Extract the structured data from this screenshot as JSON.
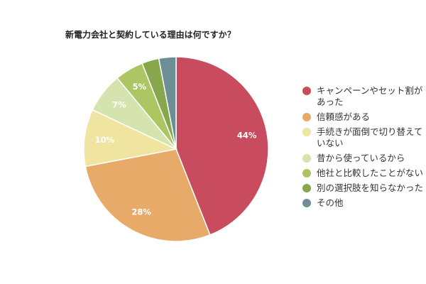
{
  "chart_data": {
    "type": "pie",
    "title": "新電力会社と契約している理由は何ですか？",
    "slices": [
      {
        "label": "キャンペーンやセット割があった",
        "value": 44,
        "data_label": "44%",
        "color": "#c94c5e"
      },
      {
        "label": "信頼感がある",
        "value": 28,
        "data_label": "28%",
        "color": "#e7aa68"
      },
      {
        "label": "手続きが面倒で切り替えていない",
        "value": 10,
        "data_label": "10%",
        "color": "#efe4a0"
      },
      {
        "label": "昔から使っているから",
        "value": 7,
        "data_label": "7%",
        "color": "#d5e4ae"
      },
      {
        "label": "他社と比較したことがない",
        "value": 5,
        "data_label": "5%",
        "color": "#abc662"
      },
      {
        "label": "別の選択肢を知らなかった",
        "value": 3,
        "data_label": "",
        "color": "#86a74b"
      },
      {
        "label": "その他",
        "value": 3,
        "data_label": "",
        "color": "#6e8e96"
      }
    ],
    "legend_position": "right"
  }
}
